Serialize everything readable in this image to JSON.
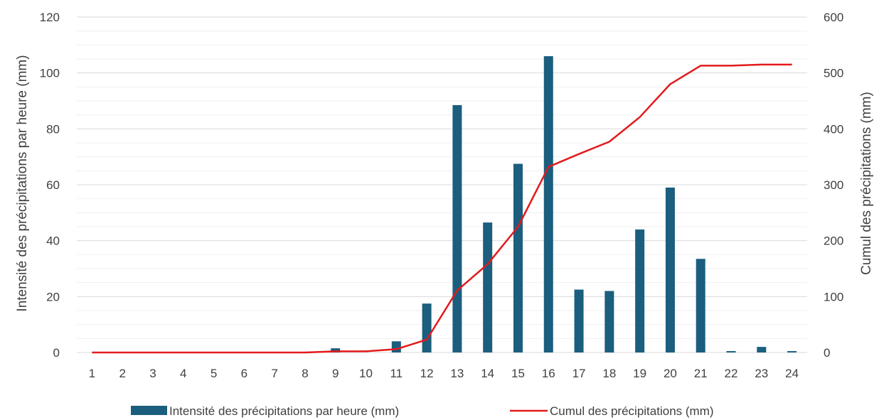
{
  "chart_data": {
    "type": "bar",
    "categories": [
      "1",
      "2",
      "3",
      "4",
      "5",
      "6",
      "7",
      "8",
      "9",
      "10",
      "11",
      "12",
      "13",
      "14",
      "15",
      "16",
      "17",
      "18",
      "19",
      "20",
      "21",
      "22",
      "23",
      "24"
    ],
    "series": [
      {
        "name": "Intensité des précipitations par heure (mm)",
        "type": "bar",
        "axis": "left",
        "color": "#1b5e7e",
        "values": [
          0,
          0,
          0,
          0,
          0,
          0,
          0,
          0,
          1.5,
          0,
          4,
          17.5,
          88.5,
          46.5,
          67.5,
          106,
          22.5,
          22,
          44,
          59,
          33.5,
          0.5,
          2,
          0.5
        ]
      },
      {
        "name": "Cumul des précipitations (mm)",
        "type": "line",
        "axis": "right",
        "color": "#e31a1c",
        "values": [
          0,
          0,
          0,
          0,
          0,
          0,
          0,
          0,
          2,
          2,
          6,
          23,
          111,
          158,
          225,
          332,
          355,
          377,
          421,
          480,
          513,
          513,
          515,
          515
        ]
      }
    ],
    "ylabel_left": "Intensité des précipitations par heure (mm)",
    "ylabel_right": "Cumul des précipitations (mm)",
    "ylim_left": [
      0,
      120
    ],
    "ylim_right": [
      0,
      600
    ],
    "yticks_left": [
      "0",
      "20",
      "40",
      "60",
      "80",
      "100",
      "120"
    ],
    "yticks_right": [
      "0",
      "100",
      "200",
      "300",
      "400",
      "500",
      "600"
    ],
    "grid": true,
    "legend_position": "bottom"
  }
}
